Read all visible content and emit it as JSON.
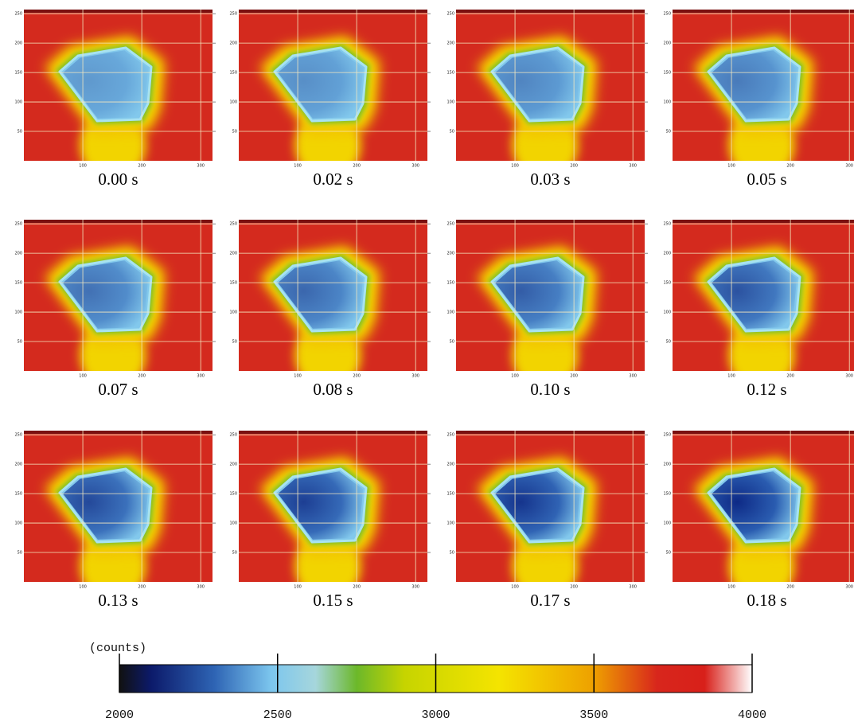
{
  "panels": [
    {
      "caption": "0.00 s"
    },
    {
      "caption": "0.02 s"
    },
    {
      "caption": "0.03 s"
    },
    {
      "caption": "0.05 s"
    },
    {
      "caption": "0.07 s"
    },
    {
      "caption": "0.08 s"
    },
    {
      "caption": "0.10 s"
    },
    {
      "caption": "0.12 s"
    },
    {
      "caption": "0.13 s"
    },
    {
      "caption": "0.15 s"
    },
    {
      "caption": "0.17 s"
    },
    {
      "caption": "0.18 s"
    }
  ],
  "axes": {
    "xlim": [
      0,
      320
    ],
    "ylim": [
      0,
      257
    ],
    "xticks": [
      100,
      200,
      300
    ],
    "yticks": [
      50,
      100,
      150,
      200,
      250
    ]
  },
  "colorbar": {
    "label": "(counts)",
    "lim": [
      2000,
      4000
    ],
    "ticks": [
      2000,
      2500,
      3000,
      3500,
      4000
    ],
    "stops": [
      {
        "value": 2000,
        "color": "#111111"
      },
      {
        "value": 2100,
        "color": "#0c1a6a"
      },
      {
        "value": 2300,
        "color": "#2e64b4"
      },
      {
        "value": 2480,
        "color": "#7cc6ee"
      },
      {
        "value": 2620,
        "color": "#a6d6dc"
      },
      {
        "value": 2750,
        "color": "#6cb82a"
      },
      {
        "value": 2900,
        "color": "#c6d400"
      },
      {
        "value": 3200,
        "color": "#f4e400"
      },
      {
        "value": 3500,
        "color": "#eea000"
      },
      {
        "value": 3700,
        "color": "#d8261c"
      },
      {
        "value": 3850,
        "color": "#d8201a"
      },
      {
        "value": 4000,
        "color": "#ffffff"
      }
    ]
  }
}
